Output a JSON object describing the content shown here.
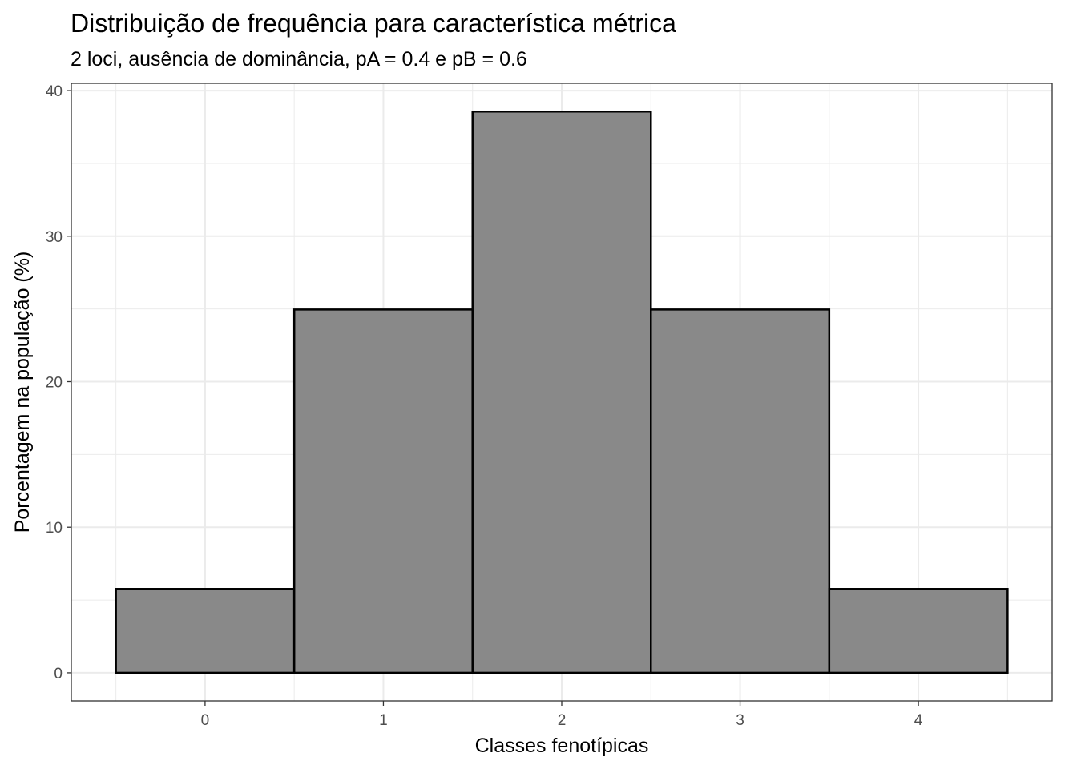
{
  "chart_data": {
    "type": "bar",
    "title": "Distribuição de frequência para característica métrica",
    "subtitle": "2 loci, ausência de dominância, pA = 0.4 e pB = 0.6",
    "xlabel": "Classes fenotípicas",
    "ylabel": "Porcentagem na população (%)",
    "categories": [
      0,
      1,
      2,
      3,
      4
    ],
    "values": [
      5.76,
      24.96,
      38.56,
      24.96,
      5.76
    ],
    "xlim": [
      -0.75,
      4.75
    ],
    "ylim": [
      -1.93,
      40.5
    ],
    "x_ticks": [
      "0",
      "1",
      "2",
      "3",
      "4"
    ],
    "y_ticks": [
      "0",
      "10",
      "20",
      "30",
      "40"
    ],
    "bar_width": 1,
    "bar_fill": "#898989",
    "bar_stroke": "#000000",
    "grid": true,
    "theme": "bw"
  }
}
